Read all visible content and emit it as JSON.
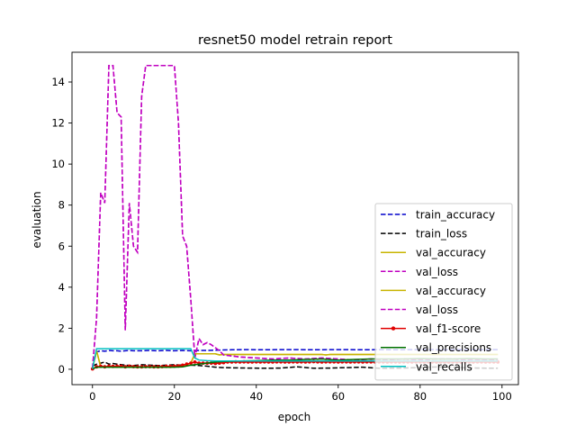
{
  "chart_data": {
    "type": "line",
    "title": "resnet50 model retrain report",
    "xlabel": "epoch",
    "ylabel": "evaluation",
    "xlim": [
      -5,
      104
    ],
    "ylim": [
      -0.75,
      15.45
    ],
    "xticks": [
      0,
      20,
      40,
      60,
      80,
      100
    ],
    "yticks": [
      0,
      2,
      4,
      6,
      8,
      10,
      12,
      14
    ],
    "grid": false,
    "legend_position": "lower-right",
    "series": [
      {
        "name": "train_accuracy",
        "color": "#0000cc",
        "style": "dashed",
        "marker": "none",
        "x": [
          0,
          1,
          2,
          3,
          4,
          5,
          6,
          7,
          8,
          9,
          10,
          12,
          14,
          16,
          18,
          20,
          22,
          24,
          26,
          28,
          30,
          34,
          38,
          42,
          46,
          50,
          54,
          58,
          62,
          66,
          70,
          74,
          78,
          82,
          86,
          90,
          94,
          99
        ],
        "y": [
          0.1,
          0.85,
          0.9,
          0.88,
          0.92,
          0.9,
          0.9,
          0.88,
          0.9,
          0.92,
          0.9,
          0.9,
          0.92,
          0.9,
          0.92,
          0.9,
          0.92,
          0.9,
          0.92,
          0.92,
          0.93,
          0.95,
          0.96,
          0.95,
          0.96,
          0.96,
          0.95,
          0.96,
          0.96,
          0.95,
          0.96,
          0.95,
          0.96,
          0.96,
          0.95,
          0.96,
          0.95,
          0.96
        ]
      },
      {
        "name": "train_loss",
        "color": "#000000",
        "style": "dashed",
        "marker": "none",
        "x": [
          0,
          1,
          2,
          3,
          4,
          5,
          6,
          8,
          10,
          12,
          14,
          16,
          18,
          20,
          22,
          24,
          26,
          28,
          30,
          32,
          34,
          38,
          42,
          46,
          50,
          54,
          58,
          62,
          66,
          70,
          74,
          78,
          82,
          86,
          90,
          94,
          99
        ],
        "y": [
          0.15,
          0.25,
          0.3,
          0.35,
          0.25,
          0.28,
          0.25,
          0.2,
          0.18,
          0.22,
          0.2,
          0.18,
          0.2,
          0.22,
          0.2,
          0.2,
          0.18,
          0.15,
          0.1,
          0.08,
          0.07,
          0.06,
          0.05,
          0.06,
          0.12,
          0.05,
          0.06,
          0.08,
          0.1,
          0.05,
          0.06,
          0.07,
          0.1,
          0.12,
          0.08,
          0.06,
          0.05
        ]
      },
      {
        "name": "val_accuracy",
        "color": "#c8b400",
        "style": "solid",
        "marker": "none",
        "x": [
          0,
          1,
          2,
          4,
          6,
          8,
          10,
          12,
          14,
          16,
          18,
          20,
          22,
          24,
          25,
          26,
          28,
          30,
          31,
          32,
          36,
          40,
          44,
          48,
          52,
          56,
          57,
          58,
          62,
          66,
          70,
          74,
          78,
          82,
          86,
          90,
          94,
          99
        ],
        "y": [
          0.05,
          0.9,
          0.12,
          0.12,
          0.1,
          0.12,
          0.1,
          0.1,
          0.12,
          0.1,
          0.1,
          0.12,
          0.15,
          0.3,
          0.75,
          0.75,
          0.75,
          0.75,
          0.7,
          0.72,
          0.72,
          0.72,
          0.72,
          0.72,
          0.72,
          0.72,
          0.7,
          0.72,
          0.72,
          0.72,
          0.72,
          0.72,
          0.72,
          0.72,
          0.72,
          0.72,
          0.72,
          0.72
        ]
      },
      {
        "name": "val_loss",
        "color": "#c000c0",
        "style": "dashed",
        "marker": "none",
        "x": [
          0,
          1,
          2,
          3,
          4,
          5,
          6,
          7,
          8,
          9,
          10,
          11,
          12,
          13,
          14,
          16,
          18,
          20,
          21,
          22,
          23,
          24,
          25,
          26,
          27,
          28,
          29,
          30,
          31,
          32,
          36,
          40,
          44,
          48,
          52,
          56,
          60,
          64,
          68,
          72,
          76,
          80,
          84,
          88,
          92,
          96,
          99
        ],
        "y": [
          0.05,
          2.5,
          8.6,
          8.1,
          14.8,
          14.8,
          12.5,
          12.3,
          1.9,
          8.1,
          6.0,
          5.7,
          13.3,
          14.8,
          14.8,
          14.8,
          14.8,
          14.8,
          12.0,
          6.5,
          6.0,
          3.4,
          0.55,
          1.5,
          1.2,
          1.3,
          1.2,
          1.05,
          0.9,
          0.7,
          0.6,
          0.55,
          0.5,
          0.55,
          0.5,
          0.55,
          0.5,
          0.45,
          0.5,
          0.45,
          0.5,
          0.45,
          0.5,
          0.5,
          0.45,
          0.45,
          0.45
        ]
      },
      {
        "name": "val_accuracy",
        "color": "#c8b400",
        "style": "solid",
        "marker": "none",
        "x": [
          0,
          1,
          2,
          4,
          6,
          8,
          10,
          12,
          14,
          16,
          18,
          20,
          22,
          24,
          25,
          26,
          28,
          30,
          31,
          32,
          36,
          40,
          44,
          48,
          52,
          56,
          57,
          58,
          62,
          66,
          70,
          74,
          78,
          82,
          86,
          90,
          94,
          99
        ],
        "y": [
          0.05,
          0.9,
          0.12,
          0.12,
          0.1,
          0.12,
          0.1,
          0.1,
          0.12,
          0.1,
          0.1,
          0.12,
          0.15,
          0.3,
          0.75,
          0.75,
          0.75,
          0.75,
          0.7,
          0.72,
          0.72,
          0.72,
          0.72,
          0.72,
          0.72,
          0.72,
          0.7,
          0.72,
          0.72,
          0.72,
          0.72,
          0.72,
          0.72,
          0.72,
          0.72,
          0.72,
          0.72,
          0.72
        ]
      },
      {
        "name": "val_loss",
        "color": "#c000c0",
        "style": "dashed",
        "marker": "none",
        "x": [
          0,
          1,
          2,
          3,
          4,
          5,
          6,
          7,
          8,
          9,
          10,
          11,
          12,
          13,
          14,
          16,
          18,
          20,
          21,
          22,
          23,
          24,
          25,
          26,
          27,
          28,
          29,
          30,
          31,
          32,
          36,
          40,
          44,
          48,
          52,
          56,
          60,
          64,
          68,
          72,
          76,
          80,
          84,
          88,
          92,
          96,
          99
        ],
        "y": [
          0.05,
          2.5,
          8.6,
          8.1,
          14.8,
          14.8,
          12.5,
          12.3,
          1.9,
          8.1,
          6.0,
          5.7,
          13.3,
          14.8,
          14.8,
          14.8,
          14.8,
          14.8,
          12.0,
          6.5,
          6.0,
          3.4,
          0.55,
          1.5,
          1.2,
          1.3,
          1.2,
          1.05,
          0.9,
          0.7,
          0.6,
          0.55,
          0.5,
          0.55,
          0.5,
          0.55,
          0.5,
          0.45,
          0.5,
          0.45,
          0.5,
          0.45,
          0.5,
          0.5,
          0.45,
          0.45,
          0.45
        ]
      },
      {
        "name": "val_f1-score",
        "color": "#e00000",
        "style": "solid",
        "marker": "dot",
        "x": [
          0,
          1,
          2,
          3,
          4,
          5,
          6,
          7,
          8,
          9,
          10,
          11,
          12,
          13,
          14,
          15,
          16,
          17,
          18,
          19,
          20,
          21,
          22,
          23,
          24,
          25,
          26,
          27,
          28,
          29,
          30,
          31,
          32,
          33,
          34,
          35,
          36,
          37,
          38,
          39,
          40,
          41,
          42,
          43,
          44,
          45,
          46,
          47,
          48,
          49,
          50,
          51,
          52,
          53,
          54,
          55,
          56,
          57,
          58,
          59,
          60,
          61,
          62,
          63,
          64,
          65,
          66,
          67,
          68,
          69,
          70,
          71,
          72,
          73,
          74,
          75,
          76,
          77,
          78,
          79,
          80,
          81,
          82,
          83,
          84,
          85,
          86,
          87,
          88,
          89,
          90,
          91,
          92,
          93,
          94,
          95,
          96,
          97,
          98,
          99
        ],
        "y": [
          0.02,
          0.12,
          0.15,
          0.12,
          0.15,
          0.14,
          0.15,
          0.15,
          0.12,
          0.15,
          0.13,
          0.12,
          0.12,
          0.13,
          0.13,
          0.12,
          0.12,
          0.13,
          0.14,
          0.14,
          0.15,
          0.16,
          0.2,
          0.25,
          0.3,
          0.35,
          0.3,
          0.3,
          0.3,
          0.3,
          0.28,
          0.3,
          0.32,
          0.35,
          0.35,
          0.36,
          0.35,
          0.36,
          0.35,
          0.35,
          0.36,
          0.35,
          0.36,
          0.35,
          0.35,
          0.36,
          0.36,
          0.35,
          0.35,
          0.36,
          0.35,
          0.36,
          0.35,
          0.36,
          0.37,
          0.36,
          0.35,
          0.36,
          0.36,
          0.36,
          0.35,
          0.36,
          0.36,
          0.35,
          0.36,
          0.36,
          0.35,
          0.36,
          0.36,
          0.35,
          0.36,
          0.36,
          0.35,
          0.36,
          0.36,
          0.35,
          0.36,
          0.36,
          0.35,
          0.36,
          0.36,
          0.35,
          0.36,
          0.36,
          0.35,
          0.36,
          0.36,
          0.35,
          0.36,
          0.36,
          0.35,
          0.36,
          0.36,
          0.35,
          0.36,
          0.36,
          0.35,
          0.36,
          0.36,
          0.35
        ]
      },
      {
        "name": "val_precisions",
        "color": "#007000",
        "style": "solid",
        "marker": "none",
        "x": [
          0,
          1,
          2,
          4,
          6,
          8,
          10,
          12,
          14,
          16,
          18,
          20,
          22,
          24,
          26,
          28,
          30,
          32,
          36,
          40,
          44,
          48,
          52,
          56,
          60,
          64,
          68,
          72,
          76,
          80,
          84,
          88,
          92,
          96,
          99
        ],
        "y": [
          0.02,
          0.1,
          0.1,
          0.1,
          0.1,
          0.1,
          0.1,
          0.1,
          0.1,
          0.1,
          0.1,
          0.1,
          0.12,
          0.2,
          0.25,
          0.3,
          0.35,
          0.38,
          0.4,
          0.42,
          0.45,
          0.45,
          0.48,
          0.5,
          0.45,
          0.48,
          0.5,
          0.5,
          0.5,
          0.52,
          0.5,
          0.5,
          0.52,
          0.5,
          0.5
        ]
      },
      {
        "name": "val_recalls",
        "color": "#00c0c0",
        "style": "solid",
        "marker": "none",
        "x": [
          0,
          1,
          2,
          4,
          6,
          8,
          10,
          12,
          14,
          16,
          18,
          20,
          22,
          24,
          25,
          26,
          28,
          30,
          32,
          36,
          40,
          44,
          48,
          52,
          56,
          60,
          64,
          68,
          72,
          76,
          80,
          84,
          88,
          92,
          96,
          99
        ],
        "y": [
          0.02,
          1.0,
          1.0,
          1.0,
          1.0,
          1.0,
          1.0,
          1.0,
          1.0,
          1.0,
          1.0,
          1.0,
          1.0,
          1.0,
          0.55,
          0.45,
          0.42,
          0.4,
          0.4,
          0.4,
          0.4,
          0.4,
          0.4,
          0.4,
          0.4,
          0.4,
          0.4,
          0.4,
          0.4,
          0.4,
          0.4,
          0.4,
          0.4,
          0.4,
          0.4,
          0.4
        ]
      }
    ]
  }
}
